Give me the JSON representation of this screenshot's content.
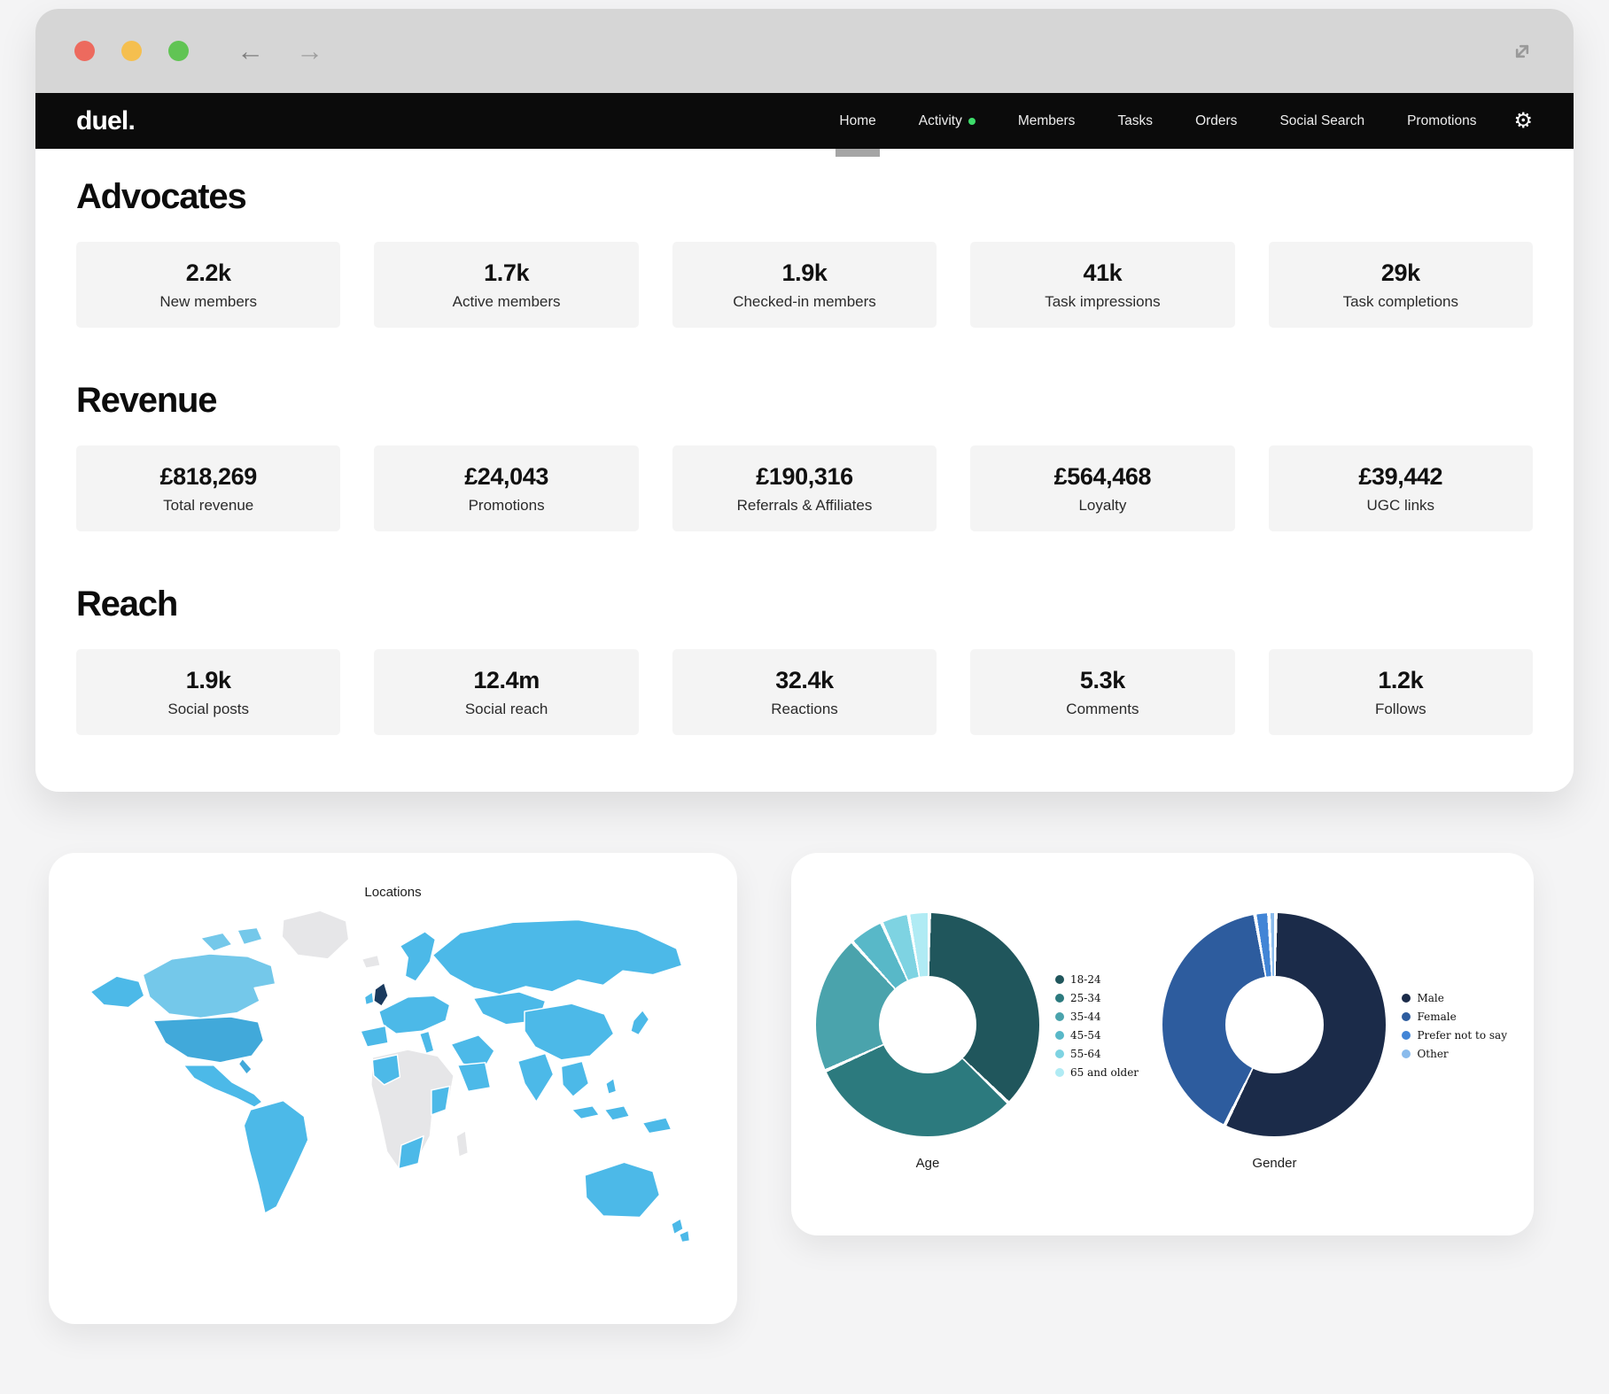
{
  "window": {
    "controls": [
      {
        "name": "close",
        "color": "#ed6a5e"
      },
      {
        "name": "minimize",
        "color": "#f5bf4f"
      },
      {
        "name": "zoom",
        "color": "#61c454"
      }
    ]
  },
  "icons": {
    "back_arrow": "←",
    "forward_arrow": "→",
    "gear": "⚙"
  },
  "navbar": {
    "logo": "duel.",
    "accent_dot_color": "#3ddc6a",
    "items": [
      {
        "label": "Home",
        "active": true,
        "dot": false
      },
      {
        "label": "Activity",
        "active": false,
        "dot": true
      },
      {
        "label": "Members",
        "active": false,
        "dot": false
      },
      {
        "label": "Tasks",
        "active": false,
        "dot": false
      },
      {
        "label": "Orders",
        "active": false,
        "dot": false
      },
      {
        "label": "Social Search",
        "active": false,
        "dot": false
      },
      {
        "label": "Promotions",
        "active": false,
        "dot": false
      }
    ]
  },
  "stats_sections": [
    {
      "title": "Advocates",
      "cards": [
        {
          "value": "2.2k",
          "label": "New members"
        },
        {
          "value": "1.7k",
          "label": "Active members"
        },
        {
          "value": "1.9k",
          "label": "Checked-in members"
        },
        {
          "value": "41k",
          "label": "Task impressions"
        },
        {
          "value": "29k",
          "label": "Task completions"
        }
      ]
    },
    {
      "title": "Revenue",
      "cards": [
        {
          "value": "£818,269",
          "label": "Total revenue"
        },
        {
          "value": "£24,043",
          "label": "Promotions"
        },
        {
          "value": "£190,316",
          "label": "Referrals & Affiliates"
        },
        {
          "value": "£564,468",
          "label": "Loyalty"
        },
        {
          "value": "£39,442",
          "label": "UGC links"
        }
      ]
    },
    {
      "title": "Reach",
      "cards": [
        {
          "value": "1.9k",
          "label": "Social posts"
        },
        {
          "value": "12.4m",
          "label": "Social reach"
        },
        {
          "value": "32.4k",
          "label": "Reactions"
        },
        {
          "value": "5.3k",
          "label": "Comments"
        },
        {
          "value": "1.2k",
          "label": "Follows"
        }
      ]
    }
  ],
  "map_card": {
    "title": "Locations",
    "colors": {
      "highlight": "#4cb9e8",
      "highlight_light": "#74c8ea",
      "highlight_medium": "#41a9da",
      "top_region": "#1a3a5e",
      "muted": "#e6e6e8"
    }
  },
  "chart_data": [
    {
      "type": "pie",
      "donut": true,
      "title": "Age",
      "categories": [
        "18-24",
        "25-34",
        "35-44",
        "45-54",
        "55-64",
        "65 and older"
      ],
      "values": [
        37,
        31,
        20,
        5,
        4,
        3
      ],
      "colors": [
        "#20565c",
        "#2c7a7e",
        "#4aa3ac",
        "#58b8c8",
        "#7ed3e2",
        "#b0ebf4"
      ],
      "legend_position": "right"
    },
    {
      "type": "pie",
      "donut": true,
      "title": "Gender",
      "categories": [
        "Male",
        "Female",
        "Prefer not to say",
        "Other"
      ],
      "values": [
        57,
        40,
        2,
        1
      ],
      "colors": [
        "#1b2b49",
        "#2d5c9e",
        "#4285d6",
        "#8abbec"
      ],
      "legend_position": "right"
    }
  ]
}
